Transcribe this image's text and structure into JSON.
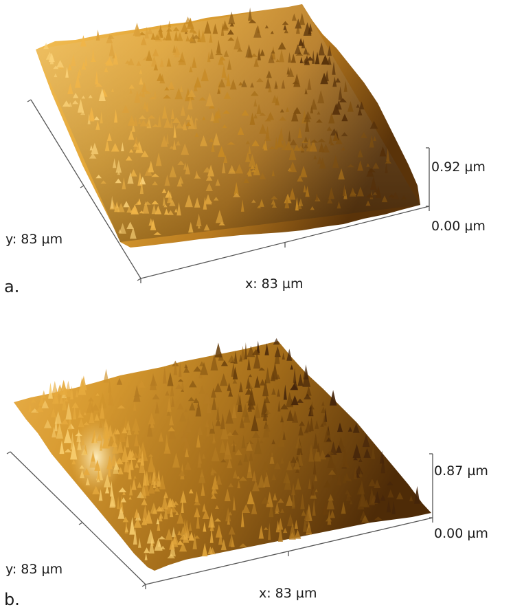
{
  "panels": [
    {
      "id": "a",
      "tag": "a.",
      "x_label": "x: 83 µm",
      "y_label": "y: 83 µm",
      "z_max_label": "0.92 µm",
      "z_min_label": "0.00 µm"
    },
    {
      "id": "b",
      "tag": "b.",
      "x_label": "x: 83 µm",
      "y_label": "y: 83 µm",
      "z_max_label": "0.87 µm",
      "z_min_label": "0.00 µm"
    }
  ],
  "colors": {
    "surface_light": "#f6c45a",
    "surface_mid": "#c98a1c",
    "surface_dark": "#5a3208",
    "axis": "#555555"
  }
}
